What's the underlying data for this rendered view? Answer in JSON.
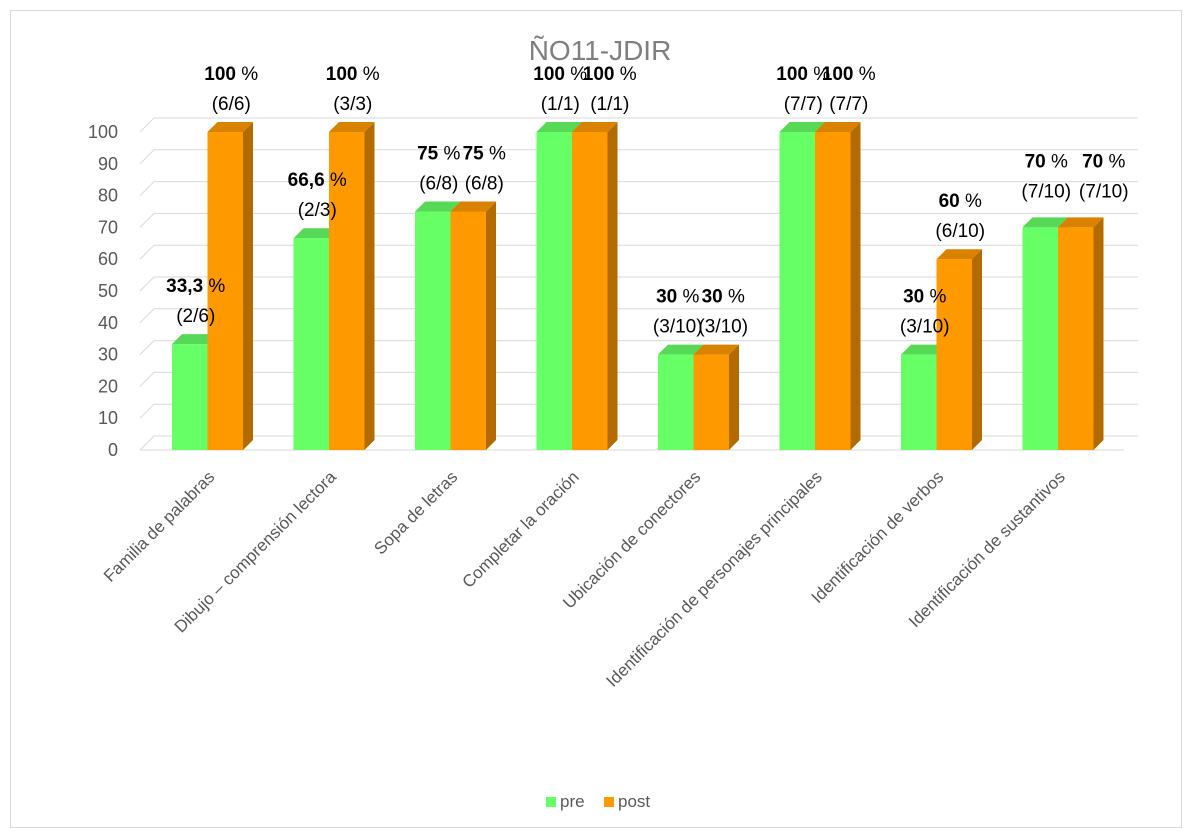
{
  "chart_data": {
    "type": "bar",
    "title": "ÑO11-JDIR",
    "xlabel": "",
    "ylabel": "",
    "ylim": [
      0,
      100
    ],
    "yticks": [
      "0",
      "10",
      "20",
      "30",
      "40",
      "50",
      "60",
      "70",
      "80",
      "90",
      "100"
    ],
    "grid": true,
    "legend_position": "bottom",
    "categories": [
      "Familia de palabras",
      "Dibujo – comprensión lectora",
      "Sopa de letras",
      "Completar la oración",
      "Ubicación de conectores",
      "Identificación de personajes principales",
      "Identificación de verbos",
      "Identificación de sustantivos"
    ],
    "series": [
      {
        "name": "pre",
        "color": "#66ff66",
        "values": [
          33.3,
          66.6,
          75,
          100,
          30,
          100,
          30,
          70
        ],
        "pct_labels": [
          "33,3",
          "66,6",
          "75",
          "100",
          "30",
          "100",
          "30",
          "70"
        ],
        "frac_labels": [
          "(2/6)",
          "(2/3)",
          "(6/8)",
          "(1/1)",
          "(3/10)",
          "(7/7)",
          "(3/10)",
          "(7/10)"
        ]
      },
      {
        "name": "post",
        "color": "#ff9900",
        "values": [
          100,
          100,
          75,
          100,
          30,
          100,
          60,
          70
        ],
        "pct_labels": [
          "100",
          "100",
          "75",
          "100",
          "30",
          "100",
          "60",
          "70"
        ],
        "frac_labels": [
          "(6/6)",
          "(3/3)",
          "(6/8)",
          "(1/1)",
          "(3/10)",
          "(7/7)",
          "(6/10)",
          "(7/10)"
        ]
      }
    ],
    "percent_sign": "%"
  }
}
